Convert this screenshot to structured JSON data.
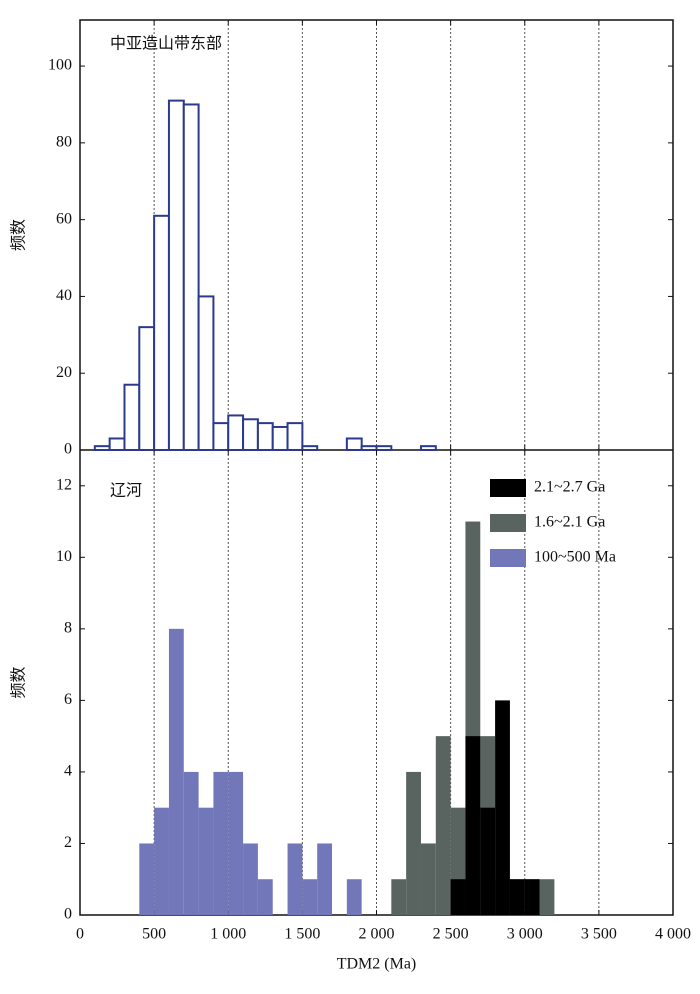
{
  "chart_data": [
    {
      "type": "histogram",
      "title": "中亚造山带东部",
      "ylabel": "频数",
      "bins": [
        0,
        100,
        200,
        300,
        400,
        500,
        600,
        700,
        800,
        900,
        1000,
        1100,
        1200,
        1300,
        1400,
        1500,
        1600,
        1700,
        1800,
        1900,
        2000,
        2100,
        2200,
        2300,
        2400
      ],
      "values": [
        0,
        1,
        3,
        17,
        32,
        61,
        91,
        90,
        40,
        7,
        9,
        8,
        7,
        6,
        7,
        1,
        0,
        0,
        3,
        1,
        1,
        0,
        0,
        1
      ],
      "color": "#2b3a8f",
      "xlim": [
        0,
        4000
      ],
      "ylim": [
        0,
        112
      ],
      "yticks": [
        0,
        20,
        40,
        60,
        80,
        100
      ],
      "grid": true
    },
    {
      "type": "histogram",
      "title": "辽河",
      "ylabel": "频数",
      "xlabel": "TDM2 (Ma)",
      "bins": [
        400,
        500,
        600,
        700,
        800,
        900,
        1000,
        1100,
        1200,
        1300,
        1400,
        1500,
        1600,
        1700,
        1800,
        1900,
        2000,
        2100,
        2200,
        2300,
        2400,
        2500,
        2600,
        2700,
        2800,
        2900,
        3000,
        3100,
        3200
      ],
      "series": [
        {
          "name": "2.1~2.7 Ga",
          "color": "#000000",
          "values": [
            0,
            0,
            0,
            0,
            0,
            0,
            0,
            0,
            0,
            0,
            0,
            0,
            0,
            0,
            0,
            0,
            0,
            0,
            0,
            0,
            0,
            1,
            5,
            3,
            6,
            1,
            1,
            0
          ]
        },
        {
          "name": "1.6~2.1 Ga",
          "color": "#59635f",
          "values": [
            0,
            0,
            0,
            0,
            0,
            0,
            0,
            0,
            0,
            0,
            0,
            0,
            0,
            0,
            0,
            0,
            0,
            1,
            4,
            2,
            5,
            3,
            11,
            5,
            1,
            1,
            1,
            1
          ]
        },
        {
          "name": "100~500 Ma",
          "color": "#7177b8",
          "values": [
            2,
            3,
            8,
            4,
            3,
            4,
            4,
            2,
            1,
            0,
            2,
            1,
            2,
            0,
            1,
            0,
            0,
            0,
            0,
            0,
            0,
            0,
            0,
            0,
            0,
            0,
            0,
            0
          ]
        }
      ],
      "xlim": [
        0,
        4000
      ],
      "xticks": [
        0,
        500,
        {
          "value": 1000,
          "label": "1 000"
        },
        {
          "value": 1500,
          "label": "1 500"
        },
        {
          "value": 2000,
          "label": "2 000"
        },
        {
          "value": 2500,
          "label": "2 500"
        },
        {
          "value": 3000,
          "label": "3 000"
        },
        {
          "value": 3500,
          "label": "3 500"
        },
        {
          "value": 4000,
          "label": "4 000"
        }
      ],
      "ylim": [
        0,
        13
      ],
      "yticks": [
        0,
        2,
        4,
        6,
        8,
        10,
        12
      ],
      "grid": true,
      "legend": "upper right"
    }
  ]
}
